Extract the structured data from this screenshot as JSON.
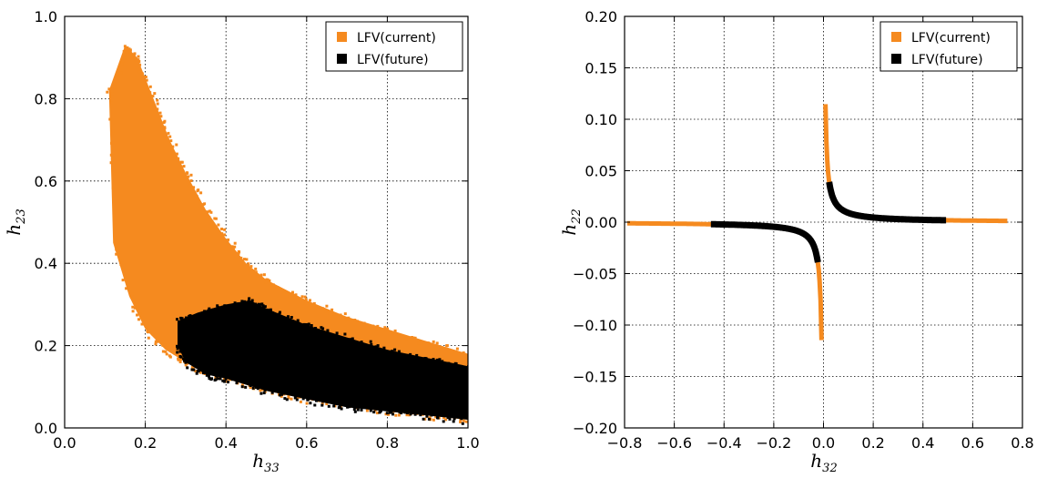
{
  "chart_data": [
    {
      "type": "scatter",
      "xlabel": "h",
      "xlabel_sub": "33",
      "ylabel": "h",
      "ylabel_sub": "23",
      "xlim": [
        0.0,
        1.0
      ],
      "ylim": [
        0.0,
        1.0
      ],
      "xticks": [
        "0.0",
        "0.2",
        "0.4",
        "0.6",
        "0.8",
        "1.0"
      ],
      "yticks": [
        "0.0",
        "0.2",
        "0.4",
        "0.6",
        "0.8",
        "1.0"
      ],
      "grid": true,
      "legend_position": "top-right",
      "series": [
        {
          "name": "LFV(current)",
          "color": "#f58a1f",
          "shape": "filled band",
          "region_upper": [
            [
              0.11,
              0.82
            ],
            [
              0.15,
              0.93
            ],
            [
              0.18,
              0.9
            ],
            [
              0.22,
              0.8
            ],
            [
              0.26,
              0.7
            ],
            [
              0.3,
              0.62
            ],
            [
              0.35,
              0.53
            ],
            [
              0.4,
              0.46
            ],
            [
              0.45,
              0.4
            ],
            [
              0.5,
              0.36
            ],
            [
              0.6,
              0.31
            ],
            [
              0.7,
              0.27
            ],
            [
              0.8,
              0.24
            ],
            [
              0.9,
              0.21
            ],
            [
              1.0,
              0.18
            ]
          ],
          "region_lower": [
            [
              0.11,
              0.82
            ],
            [
              0.12,
              0.45
            ],
            [
              0.16,
              0.32
            ],
            [
              0.2,
              0.24
            ],
            [
              0.25,
              0.19
            ],
            [
              0.3,
              0.16
            ],
            [
              0.35,
              0.14
            ],
            [
              0.4,
              0.12
            ],
            [
              0.5,
              0.09
            ],
            [
              0.6,
              0.07
            ],
            [
              0.7,
              0.06
            ],
            [
              0.8,
              0.04
            ],
            [
              0.9,
              0.03
            ],
            [
              1.0,
              0.02
            ]
          ]
        },
        {
          "name": "LFV(future)",
          "color": "#000000",
          "shape": "filled band",
          "region_upper": [
            [
              0.28,
              0.26
            ],
            [
              0.33,
              0.28
            ],
            [
              0.4,
              0.3
            ],
            [
              0.46,
              0.31
            ],
            [
              0.5,
              0.29
            ],
            [
              0.6,
              0.25
            ],
            [
              0.7,
              0.22
            ],
            [
              0.8,
              0.19
            ],
            [
              0.9,
              0.17
            ],
            [
              1.0,
              0.15
            ]
          ],
          "region_lower": [
            [
              0.28,
              0.2
            ],
            [
              0.3,
              0.16
            ],
            [
              0.35,
              0.13
            ],
            [
              0.4,
              0.12
            ],
            [
              0.5,
              0.09
            ],
            [
              0.6,
              0.07
            ],
            [
              0.7,
              0.05
            ],
            [
              0.8,
              0.04
            ],
            [
              0.9,
              0.03
            ],
            [
              1.0,
              0.02
            ]
          ]
        }
      ]
    },
    {
      "type": "scatter",
      "xlabel": "h",
      "xlabel_sub": "32",
      "ylabel": "h",
      "ylabel_sub": "22",
      "xlim": [
        -0.8,
        0.8
      ],
      "ylim": [
        -0.2,
        0.2
      ],
      "xticks": [
        "−0.8",
        "−0.6",
        "−0.4",
        "−0.2",
        "0.0",
        "0.2",
        "0.4",
        "0.6",
        "0.8"
      ],
      "yticks": [
        "−0.20",
        "−0.15",
        "−0.10",
        "−0.05",
        "0.00",
        "0.05",
        "0.10",
        "0.15",
        "0.20"
      ],
      "grid": true,
      "legend_position": "top-right",
      "series": [
        {
          "name": "LFV(current)",
          "color": "#f58a1f",
          "shape": "hyperbola branches",
          "curve": "h22 ≈ k / h32",
          "k": 0.0009,
          "x_range_negative": [
            -0.78,
            -0.008
          ],
          "x_range_positive": [
            0.008,
            0.73
          ],
          "y_extremes": [
            -0.118,
            0.121
          ]
        },
        {
          "name": "LFV(future)",
          "color": "#000000",
          "shape": "hyperbola branches",
          "curve": "h22 ≈ k / h32",
          "k": 0.0009,
          "x_range_negative": [
            -0.44,
            -0.025
          ],
          "x_range_positive": [
            0.025,
            0.48
          ],
          "y_extremes": [
            -0.035,
            0.035
          ]
        }
      ]
    }
  ]
}
